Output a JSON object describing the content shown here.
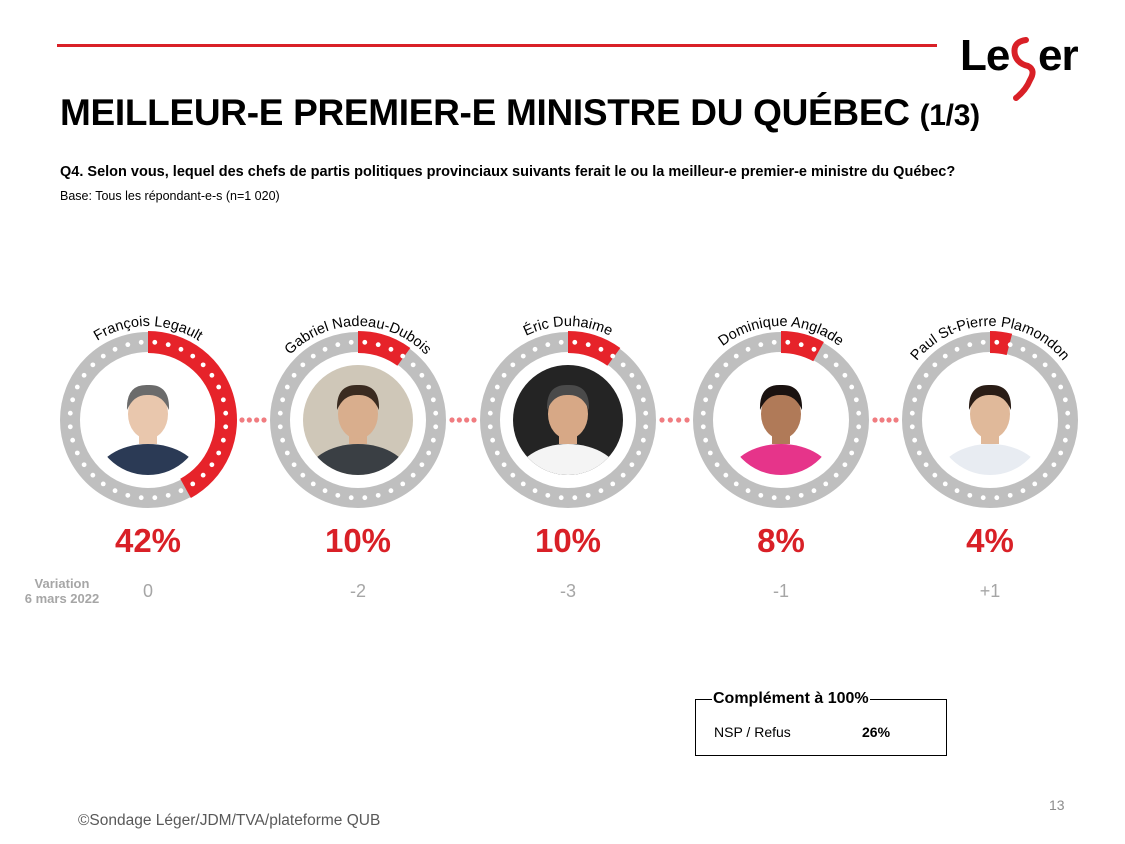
{
  "brand": {
    "name": "Leger",
    "color_dark": "#000000",
    "color_accent": "#d92027"
  },
  "title": {
    "main": "MEILLEUR-E PREMIER-E MINISTRE DU QUÉBEC",
    "part": "(1/3)"
  },
  "question": "Q4. Selon vous, lequel des chefs de partis politiques provinciaux suivants ferait le ou la meilleur-e premier-e ministre du Québec?",
  "base": "Base: Tous les répondant-e-s (n=1 020)",
  "variation_label": {
    "line1": "Variation",
    "line2": "6 mars 2022"
  },
  "chart_data": {
    "type": "pie",
    "subtype": "ring-gauge",
    "title": "MEILLEUR-E PREMIER-E MINISTRE DU QUÉBEC (1/3)",
    "unit": "%",
    "categories": [
      "François Legault",
      "Gabriel Nadeau-Dubois",
      "Éric Duhaime",
      "Dominique Anglade",
      "Paul St-Pierre Plamondon"
    ],
    "values": [
      42,
      10,
      10,
      8,
      4
    ],
    "value_labels": [
      "42%",
      "10%",
      "10%",
      "8%",
      "4%"
    ],
    "variation": [
      "0",
      "-2",
      "-3",
      "-1",
      "+1"
    ],
    "colors": {
      "filled": "#e6232a",
      "track": "#bfbfbf",
      "dots": "#ffffff",
      "connector": "#f07c80",
      "value_text": "#d92027",
      "variation_text": "#a6a6a6"
    }
  },
  "complement": {
    "title": "Complément à 100%",
    "label": "NSP / Refus",
    "value": "26%"
  },
  "page_number": "13",
  "copyright": "©Sondage Léger/JDM/TVA/plateforme QUB"
}
